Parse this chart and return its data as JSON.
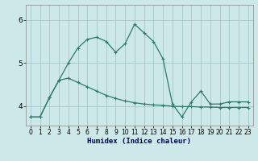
{
  "xlabel": "Humidex (Indice chaleur)",
  "bg_color": "#cce8e8",
  "grid_color": "#aacccc",
  "line_color": "#2d7a6a",
  "x_ticks": [
    0,
    1,
    2,
    3,
    4,
    5,
    6,
    7,
    8,
    9,
    10,
    11,
    12,
    13,
    14,
    15,
    16,
    17,
    18,
    19,
    20,
    21,
    22,
    23
  ],
  "y_ticks": [
    4,
    5,
    6
  ],
  "ylim": [
    3.55,
    6.35
  ],
  "xlim": [
    -0.5,
    23.5
  ],
  "line1_x": [
    0,
    1,
    2,
    3,
    4,
    5,
    6,
    7,
    8,
    9,
    10,
    11,
    12,
    13,
    14,
    15,
    16,
    17,
    18,
    19,
    20,
    21,
    22,
    23
  ],
  "line1_y": [
    3.75,
    3.75,
    4.2,
    4.6,
    5.0,
    5.35,
    5.55,
    5.6,
    5.5,
    5.25,
    5.45,
    5.9,
    5.7,
    5.5,
    5.1,
    4.05,
    3.75,
    4.1,
    4.35,
    4.05,
    4.05,
    4.1,
    4.1,
    4.1
  ],
  "line2_x": [
    0,
    1,
    2,
    3,
    4,
    5,
    6,
    7,
    8,
    9,
    10,
    11,
    12,
    13,
    14,
    15,
    16,
    17,
    18,
    19,
    20,
    21,
    22,
    23
  ],
  "line2_y": [
    3.75,
    3.75,
    4.2,
    4.6,
    4.65,
    4.55,
    4.45,
    4.35,
    4.25,
    4.18,
    4.12,
    4.08,
    4.05,
    4.03,
    4.02,
    4.0,
    3.99,
    3.99,
    3.98,
    3.98,
    3.97,
    3.97,
    3.97,
    3.97
  ]
}
